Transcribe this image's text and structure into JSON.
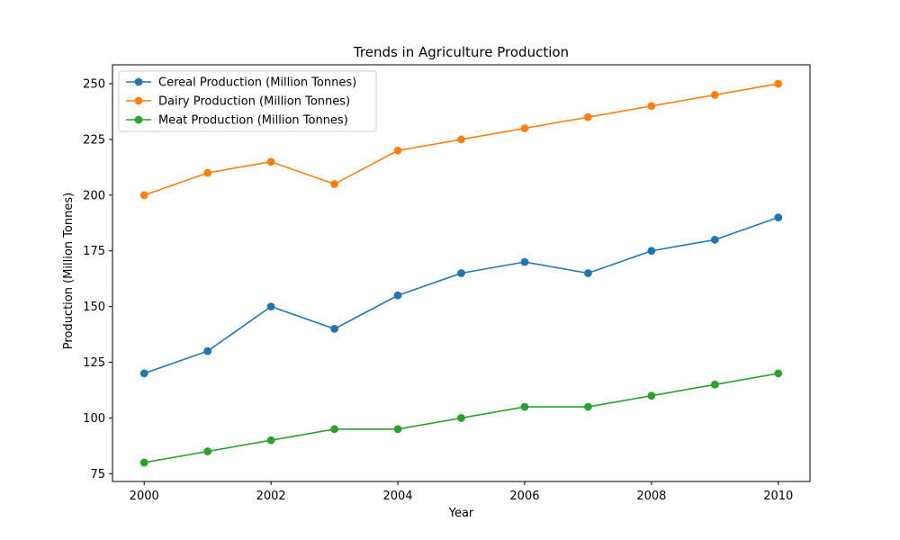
{
  "chart_data": {
    "type": "line",
    "title": "Trends in Agriculture Production",
    "xlabel": "Year",
    "ylabel": "Production (Million Tonnes)",
    "x": [
      2000,
      2001,
      2002,
      2003,
      2004,
      2005,
      2006,
      2007,
      2008,
      2009,
      2010
    ],
    "xlim": [
      1999.5,
      2010.5
    ],
    "ylim": [
      71.5,
      258.5
    ],
    "xticks": [
      2000,
      2002,
      2004,
      2006,
      2008,
      2010
    ],
    "yticks": [
      75,
      100,
      125,
      150,
      175,
      200,
      225,
      250
    ],
    "grid": false,
    "legend_position": "top-left",
    "series": [
      {
        "name": "Cereal Production (Million Tonnes)",
        "color": "#1f77b4",
        "marker": "circle",
        "values": [
          120,
          130,
          150,
          140,
          155,
          165,
          170,
          165,
          175,
          180,
          190
        ]
      },
      {
        "name": "Dairy Production (Million Tonnes)",
        "color": "#ff7f0e",
        "marker": "circle",
        "values": [
          200,
          210,
          215,
          205,
          220,
          225,
          230,
          235,
          240,
          245,
          250
        ]
      },
      {
        "name": "Meat Production (Million Tonnes)",
        "color": "#2ca02c",
        "marker": "circle",
        "values": [
          80,
          85,
          90,
          95,
          95,
          100,
          105,
          105,
          110,
          115,
          120
        ]
      }
    ]
  }
}
